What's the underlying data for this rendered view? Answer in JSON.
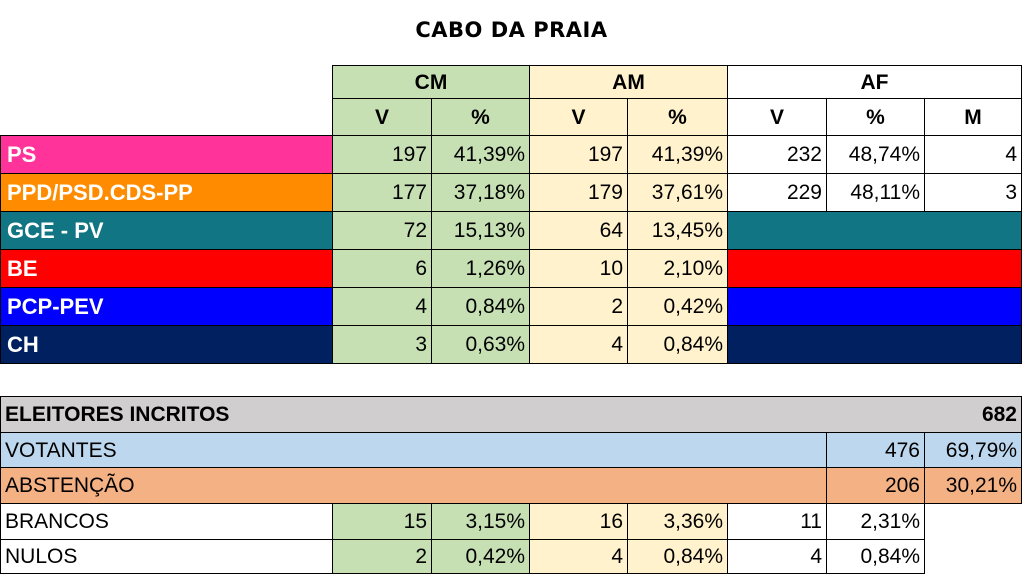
{
  "title": "CABO DA PRAIA",
  "groups": {
    "cm": "CM",
    "am": "AM",
    "af": "AF"
  },
  "subheaders": {
    "v": "V",
    "pct": "%",
    "m": "M"
  },
  "parties": [
    {
      "name": "PS",
      "color": "#ff3399",
      "cm_v": "197",
      "cm_pct": "41,39%",
      "am_v": "197",
      "am_pct": "41,39%",
      "af_v": "232",
      "af_pct": "48,74%",
      "af_m": "4"
    },
    {
      "name": "PPD/PSD.CDS-PP",
      "color": "#ff8c00",
      "cm_v": "177",
      "cm_pct": "37,18%",
      "am_v": "179",
      "am_pct": "37,61%",
      "af_v": "229",
      "af_pct": "48,11%",
      "af_m": "3"
    },
    {
      "name": "GCE - PV",
      "color": "#127583",
      "cm_v": "72",
      "cm_pct": "15,13%",
      "am_v": "64",
      "am_pct": "13,45%"
    },
    {
      "name": "BE",
      "color": "#ff0000",
      "cm_v": "6",
      "cm_pct": "1,26%",
      "am_v": "10",
      "am_pct": "2,10%"
    },
    {
      "name": "PCP-PEV",
      "color": "#0000ff",
      "cm_v": "4",
      "cm_pct": "0,84%",
      "am_v": "2",
      "am_pct": "0,42%"
    },
    {
      "name": "CH",
      "color": "#002060",
      "cm_v": "3",
      "cm_pct": "0,63%",
      "am_v": "4",
      "am_pct": "0,84%"
    }
  ],
  "summary": {
    "eleitores": {
      "label": "ELEITORES INCRITOS",
      "value": "682",
      "color": "#d0cece"
    },
    "votantes": {
      "label": "VOTANTES",
      "value": "476",
      "pct": "69,79%",
      "color": "#bdd7ee"
    },
    "abstencao": {
      "label": "ABSTENÇÃO",
      "value": "206",
      "pct": "30,21%",
      "color": "#f4b183"
    },
    "brancos": {
      "label": "BRANCOS",
      "cm_v": "15",
      "cm_pct": "3,15%",
      "am_v": "16",
      "am_pct": "3,36%",
      "af_v": "11",
      "af_pct": "2,31%"
    },
    "nulos": {
      "label": "NULOS",
      "cm_v": "2",
      "cm_pct": "0,42%",
      "am_v": "4",
      "am_pct": "0,84%",
      "af_v": "4",
      "af_pct": "0,84%"
    }
  }
}
